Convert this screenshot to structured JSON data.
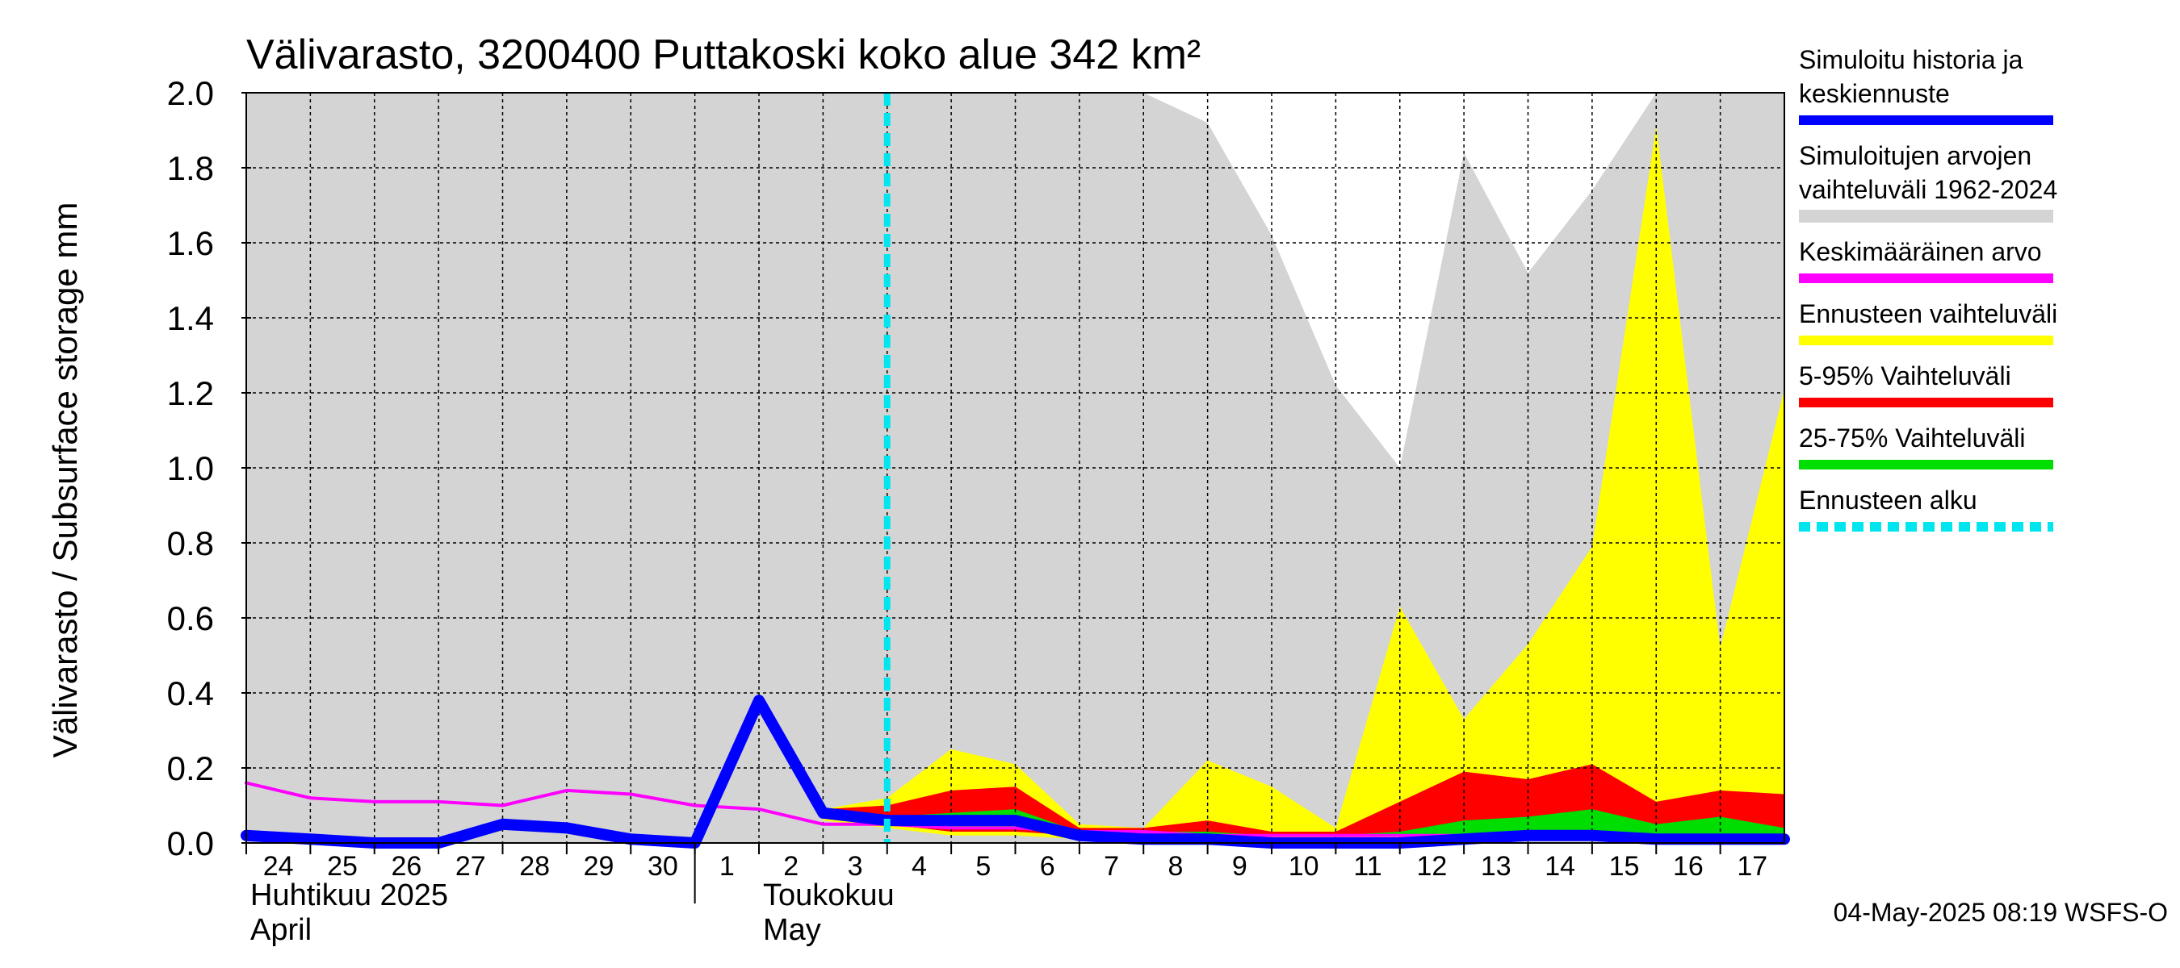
{
  "chart_data": {
    "type": "area",
    "title": "Välivarasto, 3200400 Puttakoski koko alue 342 km²",
    "ylabel": "Välivarasto / Subsurface storage  mm",
    "ylim": [
      0,
      2.0
    ],
    "yticks": [
      "0.0",
      "0.2",
      "0.4",
      "0.6",
      "0.8",
      "1.0",
      "1.2",
      "1.4",
      "1.6",
      "1.8",
      "2.0"
    ],
    "grid": true,
    "legend_position": "right",
    "x_day_labels": [
      "24",
      "25",
      "26",
      "27",
      "28",
      "29",
      "30",
      "1",
      "2",
      "3",
      "4",
      "5",
      "6",
      "7",
      "8",
      "9",
      "10",
      "11",
      "12",
      "13",
      "14",
      "15",
      "16",
      "17"
    ],
    "month_labels": [
      {
        "fi": "Huhtikuu  2025",
        "en": "April"
      },
      {
        "fi": "Toukokuu",
        "en": "May"
      }
    ],
    "dates": [
      "2025-04-24",
      "2025-04-25",
      "2025-04-26",
      "2025-04-27",
      "2025-04-28",
      "2025-04-29",
      "2025-04-30",
      "2025-05-01",
      "2025-05-02",
      "2025-05-03",
      "2025-05-04",
      "2025-05-05",
      "2025-05-06",
      "2025-05-07",
      "2025-05-08",
      "2025-05-09",
      "2025-05-10",
      "2025-05-11",
      "2025-05-12",
      "2025-05-13",
      "2025-05-14",
      "2025-05-15",
      "2025-05-16",
      "2025-05-17",
      "2025-05-18"
    ],
    "forecast_start": "2025-05-04",
    "series": [
      {
        "name": "Simuloitujen arvojen vaihteluväli 1962-2024",
        "kind": "band",
        "color": "#d4d4d4",
        "lower": [
          0,
          0,
          0,
          0,
          0,
          0,
          0,
          0,
          0,
          0,
          0,
          0,
          0,
          0,
          0,
          0,
          0,
          0,
          0,
          0,
          0,
          0,
          0,
          0,
          0
        ],
        "upper": [
          2.0,
          2.0,
          2.0,
          2.0,
          2.0,
          2.0,
          2.0,
          2.0,
          2.0,
          2.0,
          2.0,
          2.0,
          2.0,
          2.0,
          2.0,
          1.92,
          1.62,
          1.22,
          1.0,
          1.84,
          1.52,
          1.74,
          2.0,
          2.0,
          2.0
        ]
      },
      {
        "name": "Ennusteen vaihteluväli",
        "kind": "band",
        "color": "#ffff00",
        "lower": [
          null,
          null,
          null,
          null,
          null,
          null,
          null,
          null,
          null,
          0.06,
          0.04,
          0.02,
          0.02,
          0.01,
          0.01,
          0.01,
          0.01,
          0.01,
          0.01,
          0.01,
          0.01,
          0.01,
          0.01,
          0.01,
          0.01
        ],
        "upper": [
          null,
          null,
          null,
          null,
          null,
          null,
          null,
          null,
          null,
          0.09,
          0.12,
          0.25,
          0.21,
          0.05,
          0.04,
          0.22,
          0.15,
          0.04,
          0.63,
          0.33,
          0.53,
          0.79,
          1.91,
          0.52,
          1.21
        ]
      },
      {
        "name": "5-95% Vaihteluväli",
        "kind": "band",
        "color": "#ff0000",
        "lower": [
          null,
          null,
          null,
          null,
          null,
          null,
          null,
          null,
          null,
          0.07,
          0.05,
          0.03,
          0.03,
          0.02,
          0.02,
          0.02,
          0.02,
          0.02,
          0.02,
          0.02,
          0.02,
          0.02,
          0.02,
          0.02,
          0.02
        ],
        "upper": [
          null,
          null,
          null,
          null,
          null,
          null,
          null,
          null,
          null,
          0.09,
          0.1,
          0.14,
          0.15,
          0.04,
          0.04,
          0.06,
          0.03,
          0.03,
          0.11,
          0.19,
          0.17,
          0.21,
          0.11,
          0.14,
          0.13
        ]
      },
      {
        "name": "25-75% Vaihteluväli",
        "kind": "band",
        "color": "#00dd00",
        "lower": [
          null,
          null,
          null,
          null,
          null,
          null,
          null,
          null,
          null,
          0.07,
          0.05,
          0.04,
          0.04,
          0.02,
          0.02,
          0.02,
          0.02,
          0.02,
          0.02,
          0.02,
          0.02,
          0.02,
          0.02,
          0.02,
          0.02
        ],
        "upper": [
          null,
          null,
          null,
          null,
          null,
          null,
          null,
          null,
          null,
          0.08,
          0.07,
          0.08,
          0.09,
          0.03,
          0.03,
          0.03,
          0.02,
          0.02,
          0.03,
          0.06,
          0.07,
          0.09,
          0.05,
          0.07,
          0.04
        ]
      },
      {
        "name": "Keskimääräinen arvo",
        "kind": "line",
        "color": "#ff00ff",
        "values": [
          0.16,
          0.12,
          0.11,
          0.11,
          0.1,
          0.14,
          0.13,
          0.1,
          0.09,
          0.05,
          0.05,
          0.04,
          0.04,
          0.03,
          0.03,
          0.02,
          0.02,
          0.02,
          0.02,
          0.02,
          0.02,
          0.02,
          0.02,
          0.02,
          0.02
        ]
      },
      {
        "name": "Simuloitu historia ja keskiennuste",
        "kind": "line",
        "color": "#0000ff",
        "values": [
          0.02,
          0.01,
          0.0,
          0.0,
          0.05,
          0.04,
          0.01,
          0.0,
          0.38,
          0.08,
          0.06,
          0.06,
          0.06,
          0.02,
          0.01,
          0.01,
          0.0,
          0.0,
          0.0,
          0.01,
          0.02,
          0.02,
          0.01,
          0.01,
          0.01
        ]
      }
    ],
    "legend": [
      {
        "label": "Simuloitu historia ja keskiennuste",
        "color": "#0000ff",
        "style": "solid"
      },
      {
        "label": "Simuloitujen arvojen vaihteluväli 1962-2024",
        "color": "#d4d4d4",
        "style": "solid"
      },
      {
        "label": "Keskimääräinen arvo",
        "color": "#ff00ff",
        "style": "solid"
      },
      {
        "label": "Ennusteen vaihteluväli",
        "color": "#ffff00",
        "style": "solid"
      },
      {
        "label": "5-95% Vaihteluväli",
        "color": "#ff0000",
        "style": "solid"
      },
      {
        "label": "25-75% Vaihteluväli",
        "color": "#00dd00",
        "style": "solid"
      },
      {
        "label": "Ennusteen alku",
        "color": "#00e5ee",
        "style": "dashed"
      }
    ],
    "footer": "04-May-2025 08:19 WSFS-O"
  }
}
